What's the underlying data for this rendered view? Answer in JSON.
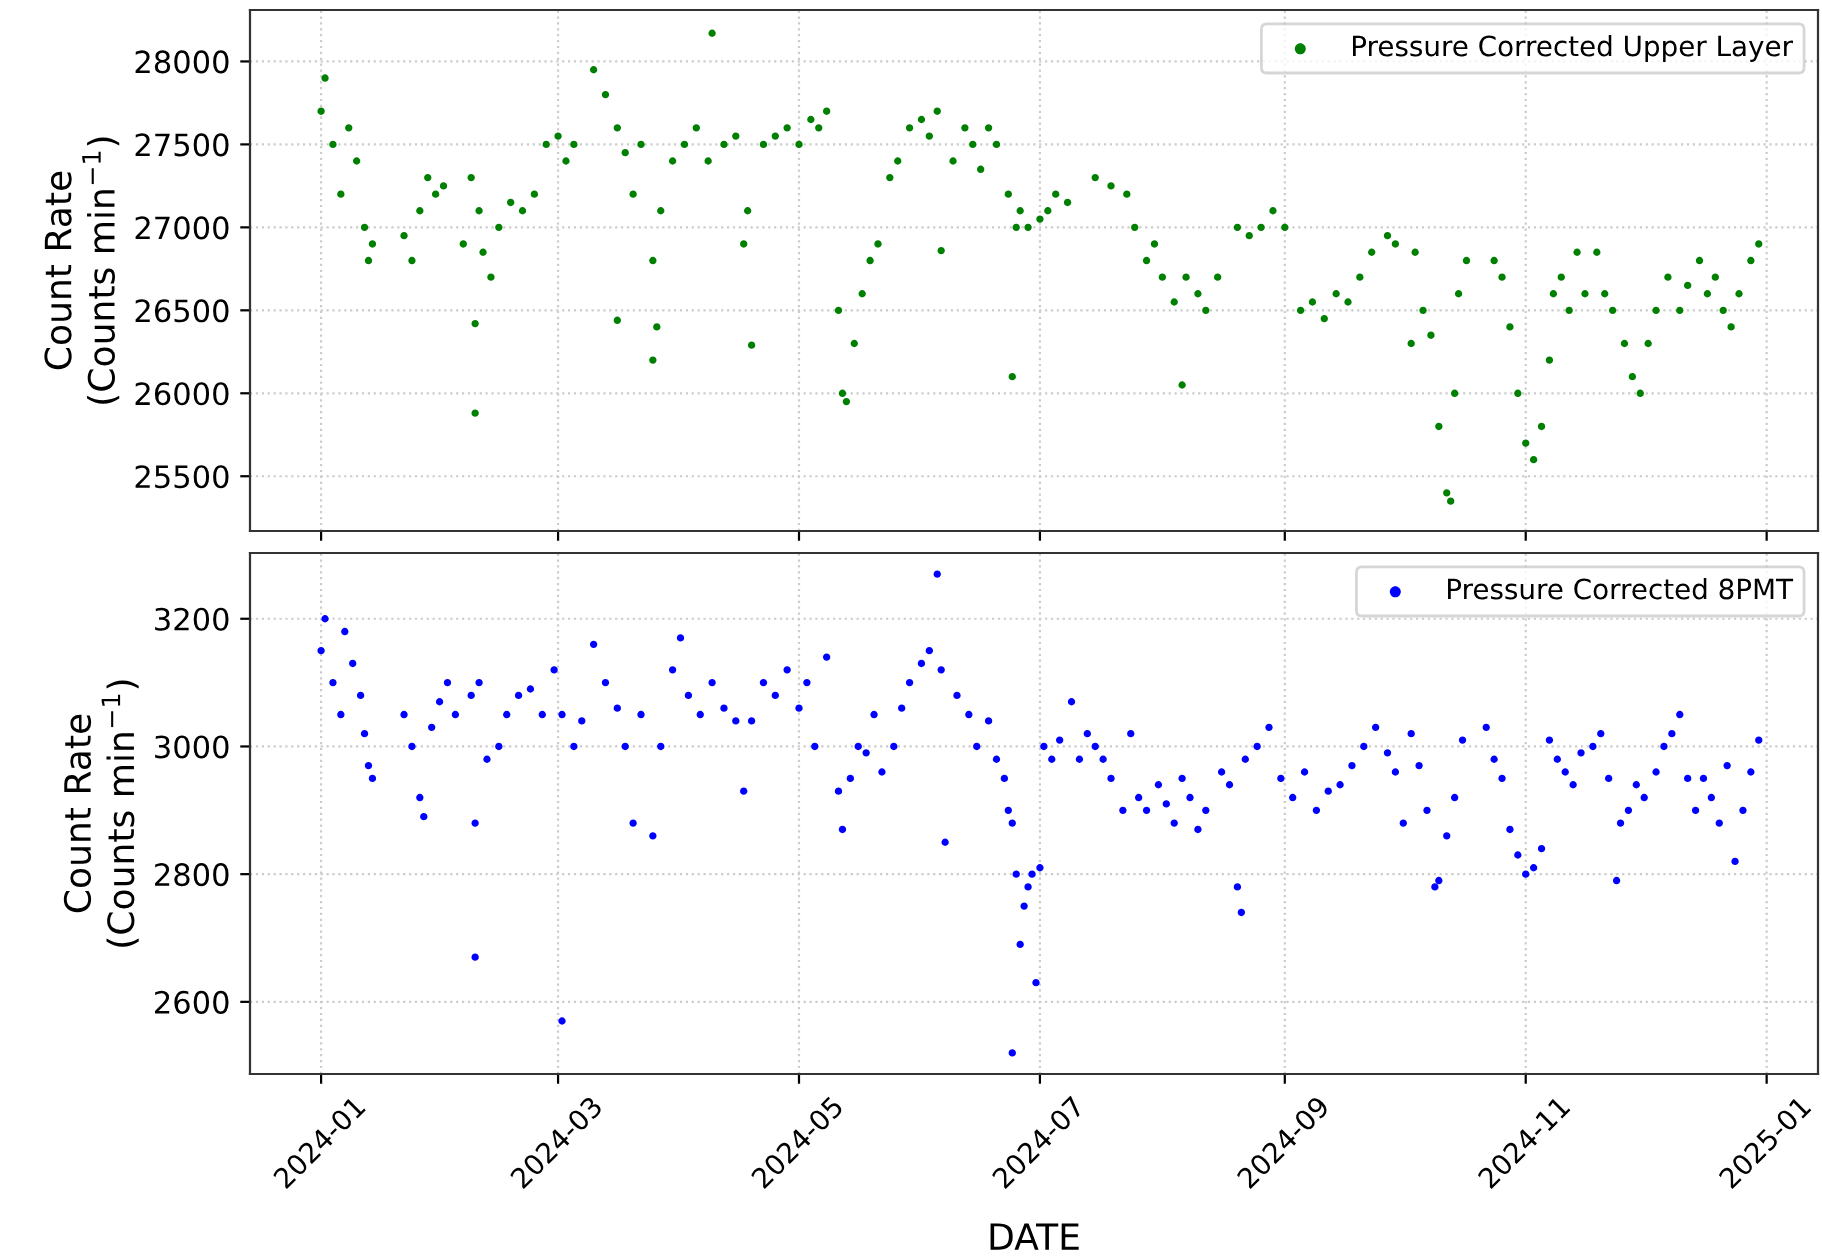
{
  "chart_data": [
    {
      "type": "scatter",
      "ylabel": "Count Rate\n(Counts min$^{−1}$)",
      "xlim": [
        "2023-12-14",
        "2025-01-14"
      ],
      "ylim": [
        25170,
        28310
      ],
      "yticks": [
        25500,
        26000,
        26500,
        27000,
        27500,
        28000
      ],
      "xticks": [
        "2024-01-01",
        "2024-03-01",
        "2024-05-01",
        "2024-07-01",
        "2024-09-01",
        "2024-11-01",
        "2025-01-01"
      ],
      "tick_labels": "y",
      "grid": true,
      "legend": "top right",
      "series": [
        {
          "name": "Pressure Corrected Upper Layer",
          "color": "#008000",
          "x": [
            "2024-01-01",
            "2024-01-02",
            "2024-01-04",
            "2024-01-06",
            "2024-01-08",
            "2024-01-10",
            "2024-01-12",
            "2024-01-13",
            "2024-01-14",
            "2024-01-22",
            "2024-01-24",
            "2024-01-26",
            "2024-01-28",
            "2024-01-30",
            "2024-02-01",
            "2024-02-06",
            "2024-02-08",
            "2024-02-09",
            "2024-02-09",
            "2024-02-10",
            "2024-02-11",
            "2024-02-13",
            "2024-02-15",
            "2024-02-18",
            "2024-02-21",
            "2024-02-24",
            "2024-02-27",
            "2024-03-01",
            "2024-03-03",
            "2024-03-05",
            "2024-03-10",
            "2024-03-13",
            "2024-03-16",
            "2024-03-16",
            "2024-03-18",
            "2024-03-20",
            "2024-03-22",
            "2024-03-25",
            "2024-03-25",
            "2024-03-26",
            "2024-03-27",
            "2024-03-30",
            "2024-04-02",
            "2024-04-05",
            "2024-04-08",
            "2024-04-09",
            "2024-04-12",
            "2024-04-15",
            "2024-04-17",
            "2024-04-18",
            "2024-04-19",
            "2024-04-22",
            "2024-04-25",
            "2024-04-28",
            "2024-05-01",
            "2024-05-04",
            "2024-05-06",
            "2024-05-08",
            "2024-05-11",
            "2024-05-12",
            "2024-05-13",
            "2024-05-15",
            "2024-05-17",
            "2024-05-19",
            "2024-05-21",
            "2024-05-24",
            "2024-05-26",
            "2024-05-29",
            "2024-06-01",
            "2024-06-03",
            "2024-06-05",
            "2024-06-06",
            "2024-06-09",
            "2024-06-12",
            "2024-06-14",
            "2024-06-16",
            "2024-06-18",
            "2024-06-20",
            "2024-06-23",
            "2024-06-24",
            "2024-06-25",
            "2024-06-26",
            "2024-06-28",
            "2024-07-01",
            "2024-07-03",
            "2024-07-05",
            "2024-07-08",
            "2024-07-15",
            "2024-07-19",
            "2024-07-23",
            "2024-07-25",
            "2024-07-28",
            "2024-07-30",
            "2024-08-01",
            "2024-08-04",
            "2024-08-06",
            "2024-08-07",
            "2024-08-10",
            "2024-08-12",
            "2024-08-15",
            "2024-08-20",
            "2024-08-23",
            "2024-08-26",
            "2024-08-29",
            "2024-09-01",
            "2024-09-05",
            "2024-09-08",
            "2024-09-11",
            "2024-09-14",
            "2024-09-17",
            "2024-09-20",
            "2024-09-23",
            "2024-09-27",
            "2024-09-29",
            "2024-10-03",
            "2024-10-04",
            "2024-10-06",
            "2024-10-08",
            "2024-10-10",
            "2024-10-12",
            "2024-10-13",
            "2024-10-14",
            "2024-10-15",
            "2024-10-17",
            "2024-10-24",
            "2024-10-26",
            "2024-10-28",
            "2024-10-30",
            "2024-11-01",
            "2024-11-03",
            "2024-11-05",
            "2024-11-07",
            "2024-11-08",
            "2024-11-10",
            "2024-11-12",
            "2024-11-14",
            "2024-11-16",
            "2024-11-19",
            "2024-11-21",
            "2024-11-23",
            "2024-11-26",
            "2024-11-28",
            "2024-11-30",
            "2024-12-02",
            "2024-12-04",
            "2024-12-07",
            "2024-12-10",
            "2024-12-12",
            "2024-12-15",
            "2024-12-17",
            "2024-12-19",
            "2024-12-21",
            "2024-12-23",
            "2024-12-25",
            "2024-12-28",
            "2024-12-30"
          ],
          "values": [
            27700,
            27900,
            27500,
            27200,
            27600,
            27400,
            27000,
            26800,
            26900,
            26950,
            26800,
            27100,
            27300,
            27200,
            27250,
            26900,
            27300,
            25880,
            26420,
            27100,
            26850,
            26700,
            27000,
            27150,
            27100,
            27200,
            27500,
            27550,
            27400,
            27500,
            27950,
            27800,
            27600,
            26440,
            27450,
            27200,
            27500,
            26800,
            26200,
            26400,
            27100,
            27400,
            27500,
            27600,
            27400,
            28170,
            27500,
            27550,
            26900,
            27100,
            26290,
            27500,
            27550,
            27600,
            27500,
            27650,
            27600,
            27700,
            26500,
            26000,
            25950,
            26300,
            26600,
            26800,
            26900,
            27300,
            27400,
            27600,
            27650,
            27550,
            27700,
            26860,
            27400,
            27600,
            27500,
            27350,
            27600,
            27500,
            27200,
            26100,
            27000,
            27100,
            27000,
            27050,
            27100,
            27200,
            27150,
            27300,
            27250,
            27200,
            27000,
            26800,
            26900,
            26700,
            26550,
            26050,
            26700,
            26600,
            26500,
            26700,
            27000,
            26950,
            27000,
            27100,
            27000,
            26500,
            26550,
            26450,
            26600,
            26550,
            26700,
            26850,
            26950,
            26900,
            26300,
            26850,
            26500,
            26350,
            25800,
            25400,
            25350,
            26000,
            26600,
            26800,
            26800,
            26700,
            26400,
            26000,
            25700,
            25600,
            25800,
            26200,
            26600,
            26700,
            26500,
            26850,
            26600,
            26850,
            26600,
            26500,
            26300,
            26100,
            26000,
            26300,
            26500,
            26700,
            26500,
            26650,
            26800,
            26600,
            26700,
            26500,
            26400,
            26600,
            26800,
            26900
          ]
        }
      ]
    },
    {
      "type": "scatter",
      "ylabel": "Count Rate\n(Counts min$^{−1}$)",
      "xlabel": "DATE",
      "xlim": [
        "2023-12-14",
        "2025-01-14"
      ],
      "ylim": [
        2487,
        3303
      ],
      "yticks": [
        2600,
        2800,
        3000,
        3200
      ],
      "xticks": [
        {
          "value": "2024-01-01",
          "label": "2024-01"
        },
        {
          "value": "2024-03-01",
          "label": "2024-03"
        },
        {
          "value": "2024-05-01",
          "label": "2024-05"
        },
        {
          "value": "2024-07-01",
          "label": "2024-07"
        },
        {
          "value": "2024-09-01",
          "label": "2024-09"
        },
        {
          "value": "2024-11-01",
          "label": "2024-11"
        },
        {
          "value": "2025-01-01",
          "label": "2025-01"
        }
      ],
      "grid": true,
      "legend": "top right",
      "series": [
        {
          "name": "Pressure Corrected 8PMT",
          "color": "#0000ff",
          "x": [
            "2024-01-01",
            "2024-01-02",
            "2024-01-04",
            "2024-01-06",
            "2024-01-07",
            "2024-01-09",
            "2024-01-11",
            "2024-01-12",
            "2024-01-13",
            "2024-01-14",
            "2024-01-22",
            "2024-01-24",
            "2024-01-26",
            "2024-01-27",
            "2024-01-29",
            "2024-01-31",
            "2024-02-02",
            "2024-02-04",
            "2024-02-08",
            "2024-02-09",
            "2024-02-09",
            "2024-02-10",
            "2024-02-12",
            "2024-02-15",
            "2024-02-17",
            "2024-02-20",
            "2024-02-23",
            "2024-02-26",
            "2024-02-29",
            "2024-03-02",
            "2024-03-02",
            "2024-03-05",
            "2024-03-07",
            "2024-03-10",
            "2024-03-13",
            "2024-03-16",
            "2024-03-18",
            "2024-03-20",
            "2024-03-22",
            "2024-03-25",
            "2024-03-27",
            "2024-03-30",
            "2024-04-01",
            "2024-04-03",
            "2024-04-06",
            "2024-04-09",
            "2024-04-12",
            "2024-04-15",
            "2024-04-17",
            "2024-04-19",
            "2024-04-22",
            "2024-04-25",
            "2024-04-28",
            "2024-05-01",
            "2024-05-03",
            "2024-05-05",
            "2024-05-08",
            "2024-05-11",
            "2024-05-12",
            "2024-05-14",
            "2024-05-16",
            "2024-05-18",
            "2024-05-20",
            "2024-05-22",
            "2024-05-25",
            "2024-05-27",
            "2024-05-29",
            "2024-06-01",
            "2024-06-03",
            "2024-06-05",
            "2024-06-06",
            "2024-06-07",
            "2024-06-10",
            "2024-06-13",
            "2024-06-15",
            "2024-06-18",
            "2024-06-20",
            "2024-06-22",
            "2024-06-23",
            "2024-06-24",
            "2024-06-24",
            "2024-06-25",
            "2024-06-26",
            "2024-06-27",
            "2024-06-28",
            "2024-06-29",
            "2024-06-30",
            "2024-07-01",
            "2024-07-02",
            "2024-07-04",
            "2024-07-06",
            "2024-07-09",
            "2024-07-11",
            "2024-07-13",
            "2024-07-15",
            "2024-07-17",
            "2024-07-19",
            "2024-07-22",
            "2024-07-24",
            "2024-07-26",
            "2024-07-28",
            "2024-07-31",
            "2024-08-02",
            "2024-08-04",
            "2024-08-06",
            "2024-08-08",
            "2024-08-10",
            "2024-08-12",
            "2024-08-16",
            "2024-08-18",
            "2024-08-20",
            "2024-08-21",
            "2024-08-22",
            "2024-08-25",
            "2024-08-28",
            "2024-08-31",
            "2024-09-03",
            "2024-09-06",
            "2024-09-09",
            "2024-09-12",
            "2024-09-15",
            "2024-09-18",
            "2024-09-21",
            "2024-09-24",
            "2024-09-27",
            "2024-09-29",
            "2024-10-01",
            "2024-10-03",
            "2024-10-05",
            "2024-10-07",
            "2024-10-09",
            "2024-10-10",
            "2024-10-12",
            "2024-10-14",
            "2024-10-16",
            "2024-10-22",
            "2024-10-24",
            "2024-10-26",
            "2024-10-28",
            "2024-10-30",
            "2024-11-01",
            "2024-11-03",
            "2024-11-05",
            "2024-11-07",
            "2024-11-09",
            "2024-11-11",
            "2024-11-13",
            "2024-11-15",
            "2024-11-18",
            "2024-11-20",
            "2024-11-22",
            "2024-11-24",
            "2024-11-25",
            "2024-11-27",
            "2024-11-29",
            "2024-12-01",
            "2024-12-04",
            "2024-12-06",
            "2024-12-08",
            "2024-12-10",
            "2024-12-12",
            "2024-12-14",
            "2024-12-16",
            "2024-12-18",
            "2024-12-20",
            "2024-12-22",
            "2024-12-24",
            "2024-12-26",
            "2024-12-28",
            "2024-12-30"
          ],
          "values": [
            3150,
            3200,
            3100,
            3050,
            3180,
            3130,
            3080,
            3020,
            2970,
            2950,
            3050,
            3000,
            2920,
            2890,
            3030,
            3070,
            3100,
            3050,
            3080,
            2880,
            2670,
            3100,
            2980,
            3000,
            3050,
            3080,
            3090,
            3050,
            3120,
            3050,
            2570,
            3000,
            3040,
            3160,
            3100,
            3060,
            3000,
            2880,
            3050,
            2860,
            3000,
            3120,
            3170,
            3080,
            3050,
            3100,
            3060,
            3040,
            2930,
            3040,
            3100,
            3080,
            3120,
            3060,
            3100,
            3000,
            3140,
            2930,
            2870,
            2950,
            3000,
            2990,
            3050,
            2960,
            3000,
            3060,
            3100,
            3130,
            3150,
            3270,
            3120,
            2850,
            3080,
            3050,
            3000,
            3040,
            2980,
            2950,
            2900,
            2880,
            2520,
            2800,
            2690,
            2750,
            2780,
            2800,
            2630,
            2810,
            3000,
            2980,
            3010,
            3070,
            2980,
            3020,
            3000,
            2980,
            2950,
            2900,
            3020,
            2920,
            2900,
            2940,
            2910,
            2880,
            2950,
            2920,
            2870,
            2900,
            2960,
            2940,
            2780,
            2740,
            2980,
            3000,
            3030,
            2950,
            2920,
            2960,
            2900,
            2930,
            2940,
            2970,
            3000,
            3030,
            2990,
            2960,
            2880,
            3020,
            2970,
            2900,
            2780,
            2790,
            2860,
            2920,
            3010,
            3030,
            2980,
            2950,
            2870,
            2830,
            2800,
            2810,
            2840,
            3010,
            2980,
            2960,
            2940,
            2990,
            3000,
            3020,
            2950,
            2790,
            2880,
            2900,
            2940,
            2920,
            2960,
            3000,
            3020,
            3050,
            2950,
            2900,
            2950,
            2920,
            2880,
            2970,
            2820,
            2900,
            2960,
            3010
          ]
        }
      ]
    }
  ]
}
